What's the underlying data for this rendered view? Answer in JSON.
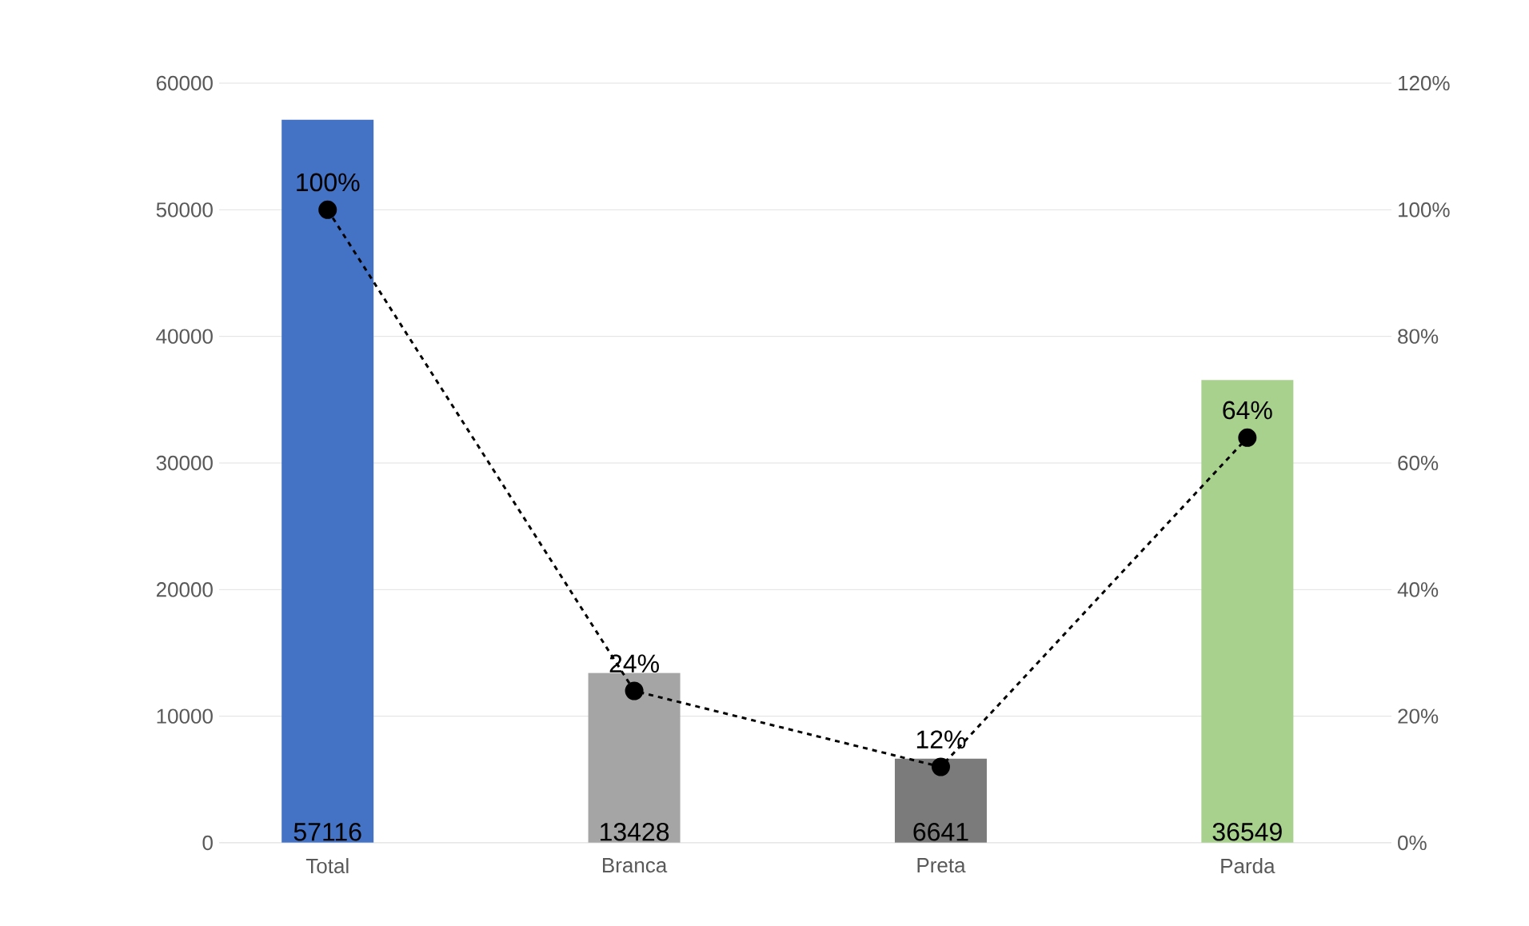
{
  "chart_data": {
    "type": "bar",
    "categories": [
      "Total",
      "Branca",
      "Preta",
      "Parda"
    ],
    "series": [
      {
        "colors": [
          "#4472c4",
          "#a5a5a5",
          "#7b7b7b",
          "#a9d18e"
        ],
        "values": [
          57116,
          13428,
          6641,
          36549
        ],
        "value_labels": [
          "57116",
          "13428",
          "6641",
          "36549"
        ]
      },
      {
        "type": "line",
        "axis": "y2",
        "color": "#000000",
        "marker": "circle",
        "line_style": "dashed",
        "values": [
          100,
          24,
          12,
          64
        ],
        "value_labels": [
          "100%",
          "24%",
          "12%",
          "64%"
        ]
      }
    ],
    "ylim": [
      0,
      60000
    ],
    "yticks": [
      0,
      10000,
      20000,
      30000,
      40000,
      50000,
      60000
    ],
    "y2lim": [
      0,
      120
    ],
    "y2ticks": [
      {
        "value": 0,
        "label": "0%"
      },
      {
        "value": 20,
        "label": "20%"
      },
      {
        "value": 40,
        "label": "40%"
      },
      {
        "value": 60,
        "label": "60%"
      },
      {
        "value": 80,
        "label": "80%"
      },
      {
        "value": 100,
        "label": "100%"
      },
      {
        "value": 120,
        "label": "120%"
      }
    ],
    "grid": "y"
  }
}
